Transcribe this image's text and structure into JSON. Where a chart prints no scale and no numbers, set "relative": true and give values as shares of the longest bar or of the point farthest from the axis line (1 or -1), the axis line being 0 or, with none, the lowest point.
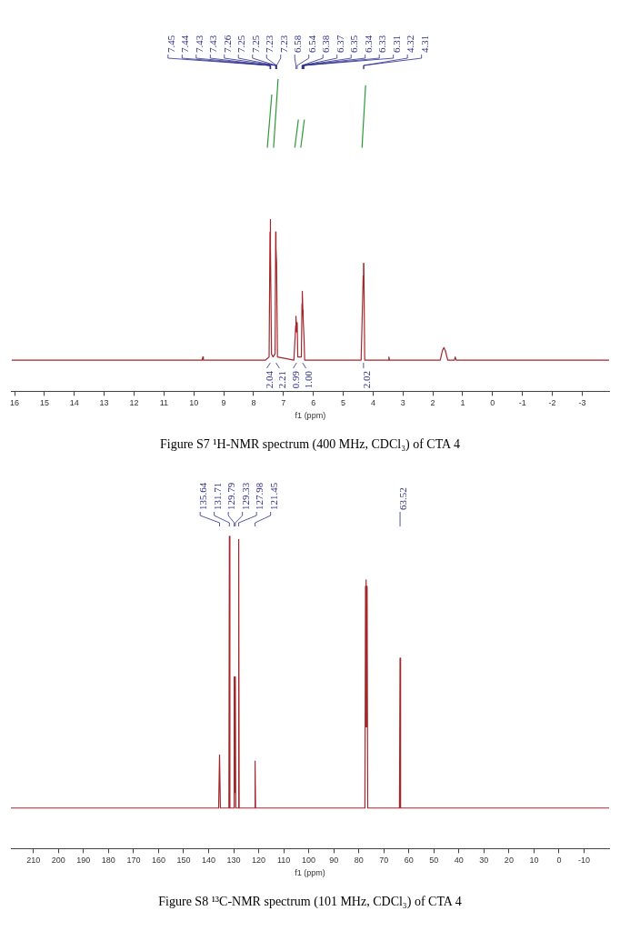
{
  "chart_data": [
    {
      "type": "line",
      "title": "Figure S7 ¹H-NMR spectrum (400 MHz, CDCl₃) of CTA 4",
      "xlabel": "f1 (ppm)",
      "relative": true,
      "xlim": [
        16.1,
        -3.9
      ],
      "xticks": [
        16,
        15,
        14,
        13,
        12,
        11,
        10,
        9,
        8,
        7,
        6,
        5,
        4,
        3,
        2,
        1,
        0,
        -1,
        -2,
        -3
      ],
      "series": [
        {
          "color": "#a3272b",
          "x": [
            16.1,
            9.72,
            9.7,
            9.68,
            7.6,
            7.48,
            7.45,
            7.44,
            7.43,
            7.4,
            7.35,
            7.28,
            7.26,
            7.25,
            7.23,
            7.2,
            6.65,
            6.59,
            6.58,
            6.56,
            6.54,
            6.52,
            6.4,
            6.38,
            6.37,
            6.35,
            6.34,
            6.31,
            6.29,
            4.4,
            4.33,
            4.32,
            4.31,
            4.28,
            3.49,
            3.47,
            3.45,
            1.75,
            1.68,
            1.63,
            1.58,
            1.5,
            1.28,
            1.25,
            1.22,
            -3.9
          ],
          "values": [
            0.1,
            0.1,
            0.11,
            0.1,
            0.1,
            0.11,
            0.51,
            0.55,
            0.46,
            0.12,
            0.11,
            0.12,
            0.51,
            0.46,
            0.41,
            0.11,
            0.1,
            0.21,
            0.24,
            0.19,
            0.22,
            0.11,
            0.11,
            0.28,
            0.32,
            0.26,
            0.23,
            0.17,
            0.1,
            0.1,
            0.37,
            0.41,
            0.41,
            0.1,
            0.1,
            0.11,
            0.1,
            0.1,
            0.13,
            0.14,
            0.13,
            0.1,
            0.1,
            0.11,
            0.1,
            0.1
          ]
        },
        {
          "color": "#2e9a35",
          "x": [
            7.54,
            7.39
          ],
          "values": [
            0.78,
            0.95
          ]
        },
        {
          "color": "#2e9a35",
          "x": [
            7.33,
            7.18
          ],
          "values": [
            0.78,
            1.0
          ]
        },
        {
          "color": "#2e9a35",
          "x": [
            6.62,
            6.5
          ],
          "values": [
            0.78,
            0.87
          ]
        },
        {
          "color": "#2e9a35",
          "x": [
            6.42,
            6.3
          ],
          "values": [
            0.78,
            0.87
          ]
        },
        {
          "color": "#2e9a35",
          "x": [
            4.37,
            4.25
          ],
          "values": [
            0.78,
            0.98
          ]
        }
      ],
      "annotations": [
        {
          "text": "7.45",
          "x": 7.45
        },
        {
          "text": "7.44",
          "x": 7.44
        },
        {
          "text": "7.43",
          "x": 7.43
        },
        {
          "text": "7.43",
          "x": 7.43
        },
        {
          "text": "7.26",
          "x": 7.26
        },
        {
          "text": "7.25",
          "x": 7.25
        },
        {
          "text": "7.25",
          "x": 7.25
        },
        {
          "text": "7.23",
          "x": 7.23
        },
        {
          "text": "7.23",
          "x": 7.23
        },
        {
          "text": "6.58",
          "x": 6.58
        },
        {
          "text": "6.54",
          "x": 6.54
        },
        {
          "text": "6.38",
          "x": 6.38
        },
        {
          "text": "6.37",
          "x": 6.37
        },
        {
          "text": "6.35",
          "x": 6.35
        },
        {
          "text": "6.34",
          "x": 6.34
        },
        {
          "text": "6.33",
          "x": 6.33
        },
        {
          "text": "6.31",
          "x": 6.31
        },
        {
          "text": "4.32",
          "x": 4.32
        },
        {
          "text": "4.31",
          "x": 4.31
        },
        {
          "text": "2.04",
          "x": 7.44,
          "y": 0.1
        },
        {
          "text": "2.21",
          "x": 7.25,
          "y": 0.1
        },
        {
          "text": "0.99",
          "x": 6.56,
          "y": 0.1
        },
        {
          "text": "1.00",
          "x": 6.36,
          "y": 0.1
        },
        {
          "text": "2.02",
          "x": 4.32,
          "y": 0.1
        }
      ]
    },
    {
      "type": "line",
      "title": "Figure S8 ¹³C-NMR spectrum (101 MHz, CDCl₃) of CTA 4",
      "xlabel": "f1 (ppm)",
      "relative": true,
      "xlim": [
        219,
        -20
      ],
      "xticks": [
        210,
        200,
        190,
        180,
        170,
        160,
        150,
        140,
        130,
        120,
        110,
        100,
        90,
        80,
        70,
        60,
        50,
        40,
        30,
        20,
        10,
        0,
        -10
      ],
      "series": [
        {
          "color": "#a3272b",
          "x": [
            219,
            136,
            135.64,
            135.3,
            131.9,
            131.71,
            131.5,
            129.95,
            129.79,
            129.6,
            129.33,
            129.15,
            128.15,
            127.98,
            127.8,
            121.65,
            121.45,
            121.25,
            77.55,
            77.32,
            77.16,
            77.0,
            76.84,
            76.68,
            76.45,
            63.75,
            63.52,
            63.3,
            -20
          ],
          "values": [
            0.13,
            0.13,
            0.3,
            0.13,
            0.13,
            1,
            0.13,
            0.13,
            0.55,
            0.18,
            0.55,
            0.13,
            0.13,
            0.99,
            0.13,
            0.13,
            0.28,
            0.13,
            0.13,
            0.84,
            0.39,
            0.86,
            0.39,
            0.84,
            0.13,
            0.13,
            0.61,
            0.13,
            0.13
          ]
        }
      ],
      "annotations": [
        {
          "text": "135.64",
          "x": 135.64
        },
        {
          "text": "131.71",
          "x": 131.71
        },
        {
          "text": "129.79",
          "x": 129.79
        },
        {
          "text": "129.33",
          "x": 129.33
        },
        {
          "text": "127.98",
          "x": 127.98
        },
        {
          "text": "121.45",
          "x": 121.45
        },
        {
          "text": "63.52",
          "x": 63.52
        }
      ]
    }
  ]
}
